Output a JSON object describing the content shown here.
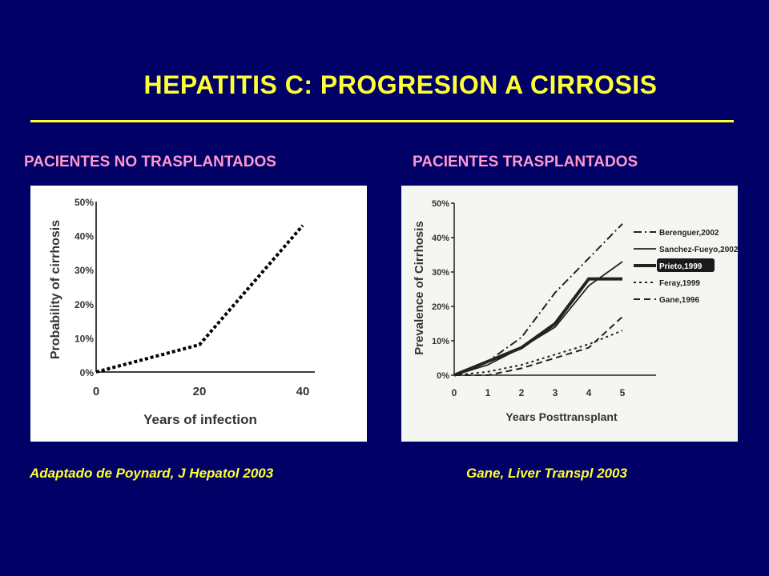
{
  "header": {
    "title": "HEPATITIS C: PROGRESION A CIRROSIS",
    "rule_color": "#ffff33"
  },
  "panels": {
    "left_heading": "PACIENTES NO TRASPLANTADOS",
    "right_heading": "PACIENTES TRASPLANTADOS",
    "left_citation": "Adaptado de Poynard, J Hepatol 2003",
    "right_citation": "Gane, Liver Transpl 2003"
  },
  "chart_data": [
    {
      "type": "line",
      "title": "",
      "xlabel": "Years of infection",
      "ylabel": "Probability of cirrhosis",
      "xlim": [
        0,
        40
      ],
      "ylim": [
        0,
        50
      ],
      "x_ticks": [
        "0",
        "20",
        "40"
      ],
      "y_ticks": [
        "0%",
        "10%",
        "20%",
        "30%",
        "40%",
        "50%"
      ],
      "grid": false,
      "series": [
        {
          "style": "dotted",
          "color": "#000000",
          "x": [
            0,
            20,
            40
          ],
          "y": [
            0,
            8,
            43
          ]
        }
      ]
    },
    {
      "type": "line",
      "title": "",
      "xlabel": "Years Posttransplant",
      "ylabel": "Prevalence of Cirrhosis",
      "xlim": [
        0,
        6
      ],
      "ylim": [
        0,
        50
      ],
      "x_ticks": [
        "0",
        "1",
        "2",
        "3",
        "4",
        "5"
      ],
      "y_ticks": [
        "0%",
        "10%",
        "20%",
        "30%",
        "40%",
        "50%"
      ],
      "grid": false,
      "legend": "right",
      "series": [
        {
          "name": "Berenguer,2002",
          "style": "dash-dot",
          "x": [
            0,
            1,
            2,
            3,
            4,
            5
          ],
          "y": [
            0,
            4,
            11,
            24,
            34,
            44
          ]
        },
        {
          "name": "Sanchez-Fueyo,2002",
          "style": "solid",
          "x": [
            0,
            1,
            2,
            3,
            4,
            5
          ],
          "y": [
            0,
            3,
            8,
            14,
            26,
            33
          ]
        },
        {
          "name": "Prieto,1999",
          "style": "thick",
          "x": [
            0,
            1,
            2,
            3,
            4,
            5
          ],
          "y": [
            0,
            4,
            8,
            15,
            28,
            28
          ]
        },
        {
          "name": "Feray,1999",
          "style": "dotted",
          "x": [
            0,
            1,
            2,
            3,
            4,
            5
          ],
          "y": [
            0,
            1,
            3,
            6,
            9,
            13
          ]
        },
        {
          "name": "Gane,1996",
          "style": "dashed",
          "x": [
            0,
            1,
            2,
            3,
            4,
            5
          ],
          "y": [
            0,
            0,
            2,
            5,
            8,
            17
          ]
        }
      ]
    }
  ]
}
